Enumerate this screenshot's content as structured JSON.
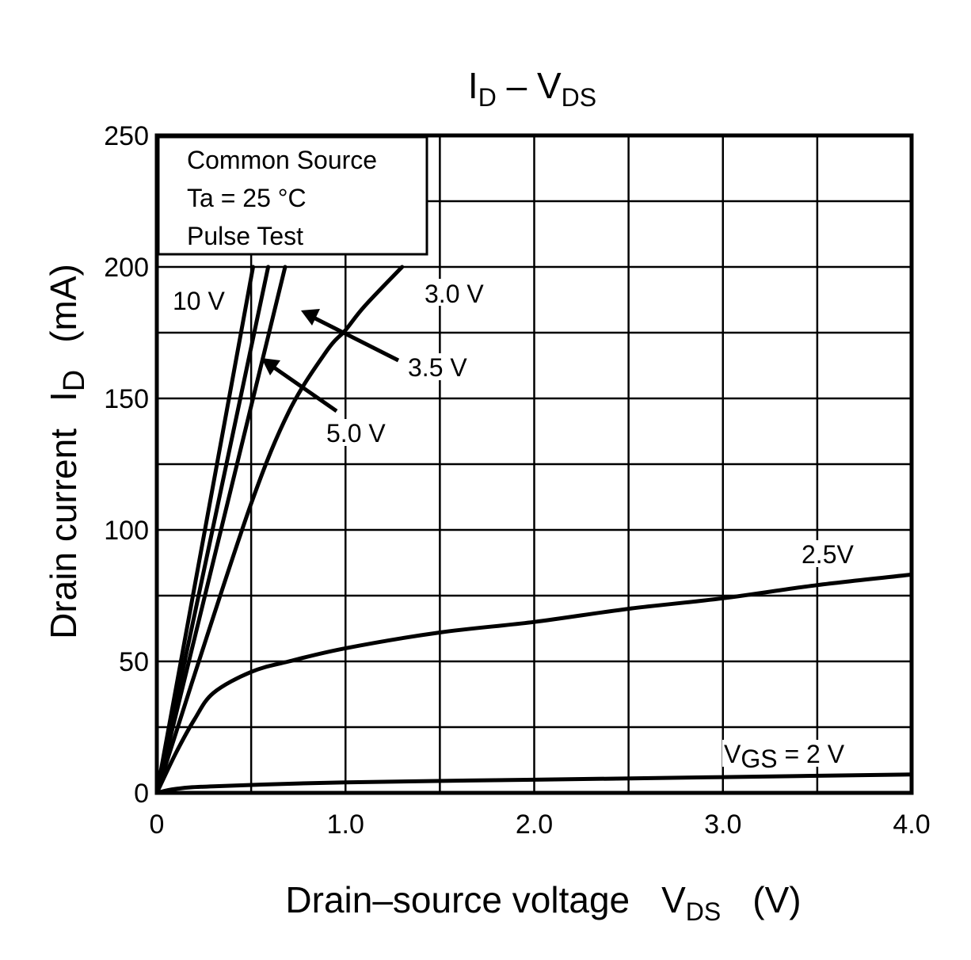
{
  "chart_data": {
    "type": "line",
    "title": "I_D – V_DS",
    "title_parts": {
      "main1": "I",
      "sub1": "D",
      "dash": " – V",
      "sub2": "DS"
    },
    "xlabel": "Drain–source voltage   V_DS   (V)",
    "xlabel_parts": {
      "text": "Drain–source voltage",
      "sym": "V",
      "sub": "DS",
      "unit": "(V)"
    },
    "ylabel": "Drain current   I_D   (mA)",
    "ylabel_parts": {
      "text": "Drain current",
      "sym": "I",
      "sub": "D",
      "unit": "(mA)"
    },
    "xlim": [
      0,
      4.0
    ],
    "ylim": [
      0,
      250
    ],
    "x_ticks": [
      0,
      1.0,
      2.0,
      3.0,
      4.0
    ],
    "x_tick_labels": [
      "0",
      "1.0",
      "2.0",
      "3.0",
      "4.0"
    ],
    "y_ticks": [
      0,
      50,
      100,
      150,
      200,
      250
    ],
    "y_tick_labels": [
      "0",
      "50",
      "100",
      "150",
      "200",
      "250"
    ],
    "grid": true,
    "conditions": [
      "Common Source",
      "Ta = 25 °C",
      "Pulse Test"
    ],
    "series": [
      {
        "name": "10 V",
        "x": [
          0,
          0.51
        ],
        "y": [
          0,
          200
        ]
      },
      {
        "name": "5.0 V",
        "x": [
          0,
          0.59
        ],
        "y": [
          0,
          200
        ]
      },
      {
        "name": "3.5 V",
        "x": [
          0,
          0.68
        ],
        "y": [
          0,
          200
        ]
      },
      {
        "name": "3.0 V",
        "x": [
          0,
          0.2,
          0.5,
          0.7,
          0.9,
          1.0,
          1.1,
          1.3
        ],
        "y": [
          0,
          45,
          110,
          145,
          168,
          176,
          185,
          200
        ]
      },
      {
        "name": "2.5V",
        "x": [
          0,
          0.1,
          0.2,
          0.3,
          0.5,
          0.7,
          1.0,
          1.5,
          2.0,
          2.5,
          3.0,
          3.5,
          4.0
        ],
        "y": [
          0,
          15,
          28,
          38,
          46,
          50,
          55,
          61,
          65,
          70,
          74,
          79,
          83
        ]
      },
      {
        "name": "VGS = 2 V",
        "x": [
          0,
          0.1,
          0.3,
          1.0,
          2.0,
          3.0,
          4.0
        ],
        "y": [
          0,
          1.5,
          2.5,
          4,
          5,
          6,
          7
        ]
      }
    ],
    "annotations": {
      "a10": "10 V",
      "a30": "3.0 V",
      "a35": "3.5 V",
      "a50": "5.0 V",
      "a25": "2.5V",
      "a2_prefix": "V",
      "a2_sub": "GS",
      "a2_suffix": " = 2 V"
    }
  }
}
